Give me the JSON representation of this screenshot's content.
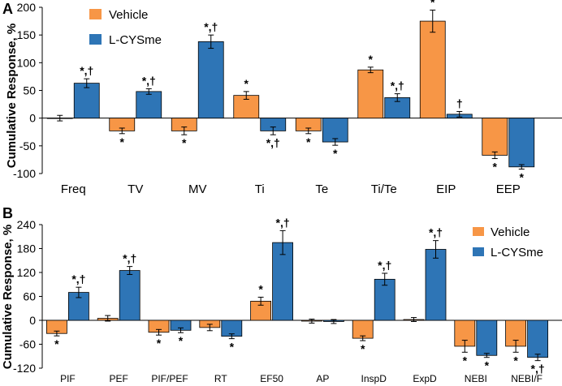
{
  "chart_data": [
    {
      "type": "bar",
      "panel_label": "A",
      "ylabel": "Cumulative Response, %",
      "ylim": [
        -100,
        200
      ],
      "yticks": [
        200,
        150,
        100,
        50,
        0,
        -50,
        -100
      ],
      "categories": [
        "Freq",
        "TV",
        "MV",
        "Ti",
        "Te",
        "Ti/Te",
        "EIP",
        "EEP"
      ],
      "legend_position": "top-left",
      "series": [
        {
          "name": "Vehicle",
          "color": "#F79646",
          "values": [
            0,
            -23,
            -23,
            41,
            -23,
            87,
            175,
            -67
          ],
          "errors": [
            5,
            5,
            7,
            7,
            5,
            5,
            20,
            6
          ],
          "annotations": [
            "",
            "*",
            "*",
            "*",
            "*",
            "*",
            "*",
            "*"
          ]
        },
        {
          "name": "L-CYSme",
          "color": "#2E75B6",
          "values": [
            63,
            48,
            138,
            -23,
            -43,
            37,
            7,
            -88
          ],
          "errors": [
            8,
            5,
            12,
            7,
            6,
            7,
            5,
            4
          ],
          "annotations": [
            "*,†",
            "*,†",
            "*,†",
            "*,†",
            "*",
            "*,†",
            "†",
            "*"
          ]
        }
      ]
    },
    {
      "type": "bar",
      "panel_label": "B",
      "ylabel": "Cumulative Response, %",
      "ylim": [
        -120,
        240
      ],
      "yticks": [
        240,
        180,
        120,
        60,
        0,
        -60,
        -120
      ],
      "categories": [
        "PIF",
        "PEF",
        "PIF/PEF",
        "RT",
        "EF50",
        "AP",
        "InspD",
        "ExpD",
        "NEBI",
        "NEBI/F"
      ],
      "legend_position": "top-right",
      "series": [
        {
          "name": "Vehicle",
          "color": "#F79646",
          "values": [
            -33,
            5,
            -30,
            -18,
            48,
            -2,
            -45,
            2,
            -65,
            -65
          ],
          "errors": [
            6,
            7,
            7,
            8,
            10,
            5,
            6,
            5,
            15,
            15
          ],
          "annotations": [
            "*",
            "",
            "*",
            "",
            "*",
            "",
            "*",
            "",
            "*",
            "*"
          ]
        },
        {
          "name": "L-CYSme",
          "color": "#2E75B6",
          "values": [
            70,
            125,
            -25,
            -40,
            195,
            -3,
            103,
            178,
            -88,
            -93
          ],
          "errors": [
            13,
            10,
            6,
            6,
            30,
            5,
            15,
            22,
            5,
            8
          ],
          "annotations": [
            "*,†",
            "*,†",
            "*",
            "*",
            "*,†",
            "",
            "*,†",
            "*,†",
            "*",
            "*,†"
          ]
        }
      ]
    }
  ]
}
